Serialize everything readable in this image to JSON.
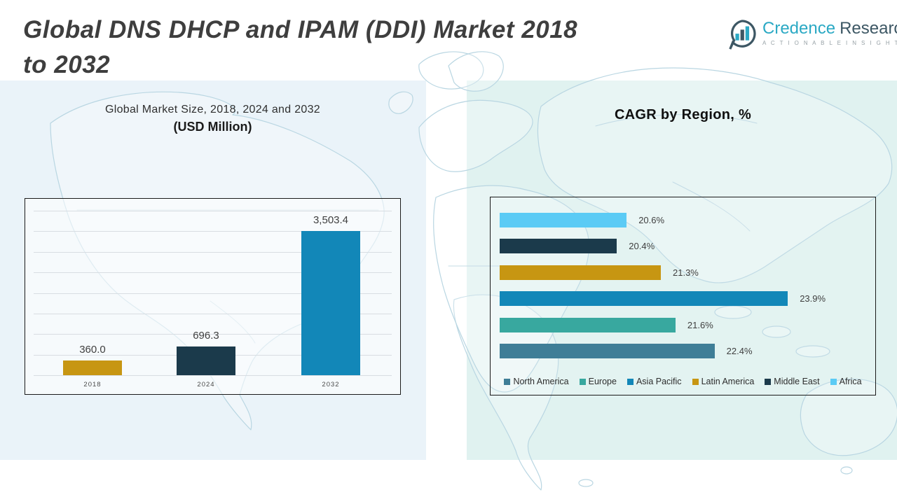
{
  "header": {
    "title_line1": "Global DNS DHCP and IPAM (DDI) Market 2018",
    "title_line2": "to 2032",
    "logo": {
      "brand_primary": "Credence",
      "brand_secondary": "Research",
      "tagline": "A C T I O N A B L E   I N S I G H T S   D E L I V E R E D",
      "icon": "bar-chart-bubble-icon",
      "colors": {
        "primary": "#2BA9C4",
        "secondary": "#3D5764"
      }
    }
  },
  "chart_data": [
    {
      "type": "bar",
      "orientation": "vertical",
      "title": "Global Market Size, 2018, 2024 and 2032",
      "subtitle": "(USD Million)",
      "categories": [
        "2018",
        "2024",
        "2032"
      ],
      "values": [
        360.0,
        696.3,
        3503.4
      ],
      "value_labels": [
        "360.0",
        "696.3",
        "3,503.4"
      ],
      "bar_colors": [
        "#C79612",
        "#1B3A4B",
        "#1287B8"
      ],
      "xlabel": "",
      "ylabel": "",
      "ylim": [
        0,
        4000
      ],
      "gridline_step": 500,
      "grid": true,
      "legend_position": "none"
    },
    {
      "type": "bar",
      "orientation": "horizontal",
      "title": "CAGR by Region, %",
      "categories_top_to_bottom": [
        "Africa",
        "Middle East",
        "Latin America",
        "Asia Pacific",
        "Europe",
        "North America"
      ],
      "values": [
        20.6,
        20.4,
        21.3,
        23.9,
        21.6,
        22.4
      ],
      "value_labels": [
        "20.6%",
        "20.4%",
        "21.3%",
        "23.9%",
        "21.6%",
        "22.4%"
      ],
      "bar_colors": [
        "#5BCBF5",
        "#1B3A4B",
        "#C79612",
        "#1287B8",
        "#38A89F",
        "#3F7E97"
      ],
      "xlim": [
        18,
        24.6
      ],
      "grid": false,
      "legend_position": "bottom",
      "legend": [
        {
          "label": "North America",
          "color": "#3F7E97"
        },
        {
          "label": "Europe",
          "color": "#38A89F"
        },
        {
          "label": "Asia Pacific",
          "color": "#1287B8"
        },
        {
          "label": "Latin America",
          "color": "#C79612"
        },
        {
          "label": "Middle East",
          "color": "#1B3A4B"
        },
        {
          "label": "Africa",
          "color": "#5BCBF5"
        }
      ]
    }
  ],
  "colors": {
    "panel_left": "#EAF3F9",
    "panel_right": "#E0F2F0",
    "map_stroke": "#b9d6e2",
    "chart_border": "#1a1a1a",
    "title_text": "#3E3E3E"
  }
}
